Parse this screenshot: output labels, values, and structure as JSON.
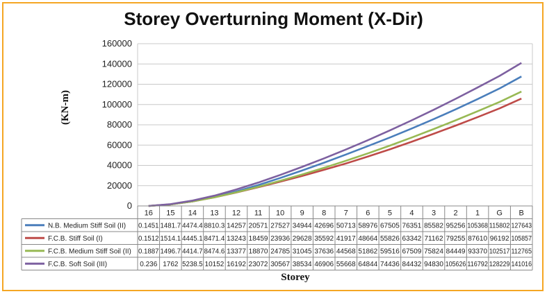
{
  "chart_data": {
    "type": "line",
    "title": "Storey Overturning Moment (X-Dir)",
    "xlabel": "Storey",
    "ylabel": "(KN-m)",
    "ylim": [
      0,
      160000
    ],
    "yticks": [
      "0",
      "20000",
      "40000",
      "60000",
      "80000",
      "100000",
      "120000",
      "140000",
      "160000"
    ],
    "grid": true,
    "legend": "table-left",
    "categories": [
      "16",
      "15",
      "14",
      "13",
      "12",
      "11",
      "10",
      "9",
      "8",
      "7",
      "6",
      "5",
      "4",
      "3",
      "2",
      "1",
      "G",
      "B"
    ],
    "series": [
      {
        "name": "N.B. Medium Stiff Soil (II)",
        "color": "#4a7ebb",
        "values": [
          0.1451,
          1481.7,
          4474.4,
          8810.3,
          14257,
          20571,
          27527,
          34944,
          42696,
          50713,
          58976,
          67505,
          76351,
          85582,
          95256,
          105368,
          115802,
          127643
        ],
        "labels": [
          "0.1451",
          "1481.7",
          "4474.4",
          "8810.3",
          "14257",
          "20571",
          "27527",
          "34944",
          "42696",
          "50713",
          "58976",
          "67505",
          "76351",
          "85582",
          "95256",
          "105368",
          "115802",
          "127643"
        ]
      },
      {
        "name": "F.C.B. Stiff Soil (I)",
        "color": "#be4b48",
        "values": [
          0.1512,
          1514.1,
          4445.1,
          8471.4,
          13243,
          18459,
          23936,
          29628,
          35592,
          41917,
          48664,
          55826,
          63342,
          71162,
          79255,
          87610,
          96192,
          105857
        ],
        "labels": [
          "0.1512",
          "1514.1",
          "4445.1",
          "8471.4",
          "13243",
          "18459",
          "23936",
          "29628",
          "35592",
          "41917",
          "48664",
          "55826",
          "63342",
          "71162",
          "79255",
          "87610",
          "96192",
          "105857"
        ]
      },
      {
        "name": "F.C.B. Medium Stiff Soil (II)",
        "color": "#98b954",
        "values": [
          0.1887,
          1496.7,
          4414.7,
          8474.6,
          13377,
          18870,
          24785,
          31045,
          37636,
          44568,
          51862,
          59516,
          67509,
          75824,
          84449,
          93370,
          102517,
          112765
        ],
        "labels": [
          "0.1887",
          "1496.7",
          "4414.7",
          "8474.6",
          "13377",
          "18870",
          "24785",
          "31045",
          "37636",
          "44568",
          "51862",
          "59516",
          "67509",
          "75824",
          "84449",
          "93370",
          "102517",
          "112765"
        ]
      },
      {
        "name": "F.C.B. Soft Soil (III)",
        "color": "#7d60a0",
        "values": [
          0.236,
          1762,
          5238.5,
          10152,
          16192,
          23072,
          30567,
          38534,
          46906,
          55668,
          64844,
          74436,
          84432,
          94830,
          105626,
          116792,
          128229,
          141016
        ],
        "labels": [
          "0.236",
          "1762",
          "5238.5",
          "10152",
          "16192",
          "23072",
          "30567",
          "38534",
          "46906",
          "55668",
          "64844",
          "74436",
          "84432",
          "94830",
          "105626",
          "116792",
          "128229",
          "141016"
        ]
      }
    ]
  }
}
